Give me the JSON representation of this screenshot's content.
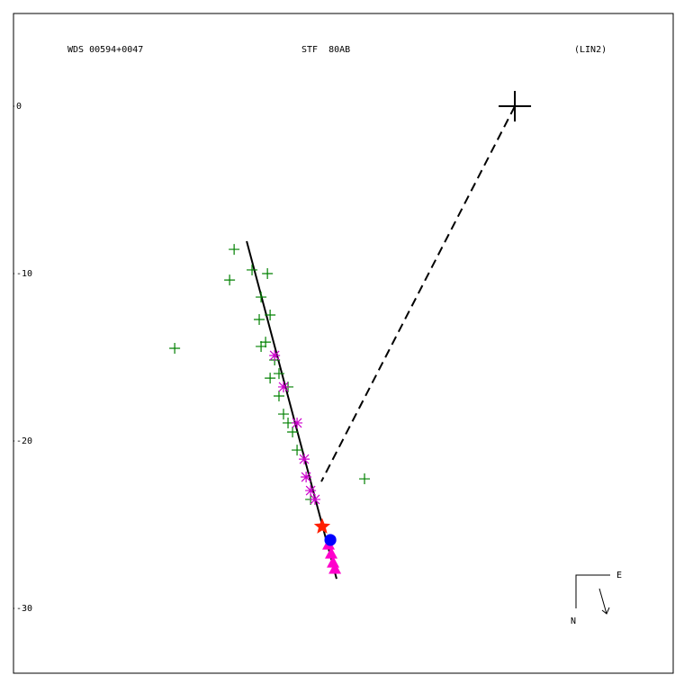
{
  "chart_data": {
    "type": "scatter",
    "title": "WDS 00594+0047",
    "subtitle": "STF  80AB",
    "annotation": "(LIN2)",
    "compass": {
      "east": "E",
      "north": "N"
    },
    "xlim": [
      -29.95,
      9.46
    ],
    "ylim": [
      5.54,
      -33.87
    ],
    "yticks": [
      0,
      -10,
      -20,
      -30
    ],
    "primary": {
      "x": 0,
      "y": 0
    },
    "fit": {
      "x": [
        -16.02,
        -10.65
      ],
      "y": [
        -8.06,
        -28.23
      ],
      "color": "#000000"
    },
    "series": [
      {
        "marker": "plus",
        "color": "#008000",
        "x": [
          -16.77,
          -17.04,
          -20.32,
          -8.98,
          -14.78,
          -15.7,
          -15.16,
          -15.27,
          -14.62,
          -14.89,
          -14.35,
          -14.62,
          -14.09,
          -13.82,
          -13.55,
          -13.28,
          -13.01,
          -15.16,
          -14.09,
          -13.55,
          -12.2
        ],
        "values": [
          -8.55,
          -10.38,
          -14.46,
          -22.26,
          -10.0,
          -9.78,
          -11.4,
          -12.74,
          -12.47,
          -14.09,
          -15.16,
          -16.24,
          -17.31,
          -18.39,
          -18.92,
          -19.46,
          -20.54,
          -14.35,
          -15.97,
          -16.77,
          -23.49
        ]
      },
      {
        "marker": "asterisk",
        "color": "#cc00cc",
        "x": [
          -14.35,
          -13.82,
          -13.01,
          -12.58,
          -12.47,
          -12.2,
          -11.94
        ],
        "values": [
          -14.89,
          -16.77,
          -18.92,
          -21.08,
          -22.15,
          -22.96,
          -23.49
        ]
      },
      {
        "marker": "triangle",
        "color": "#ff00cc",
        "x": [
          -11.13,
          -10.97,
          -10.86,
          -10.75
        ],
        "values": [
          -26.18,
          -26.72,
          -27.26,
          -27.63
        ]
      },
      {
        "marker": "star",
        "color": "#ff2000",
        "x": [
          -11.51
        ],
        "values": [
          -25.11
        ]
      },
      {
        "marker": "circle",
        "color": "#0000ff",
        "x": [
          -11.02
        ],
        "values": [
          -25.91
        ]
      }
    ],
    "node": {
      "x": -11.56,
      "y": -22.42
    }
  }
}
